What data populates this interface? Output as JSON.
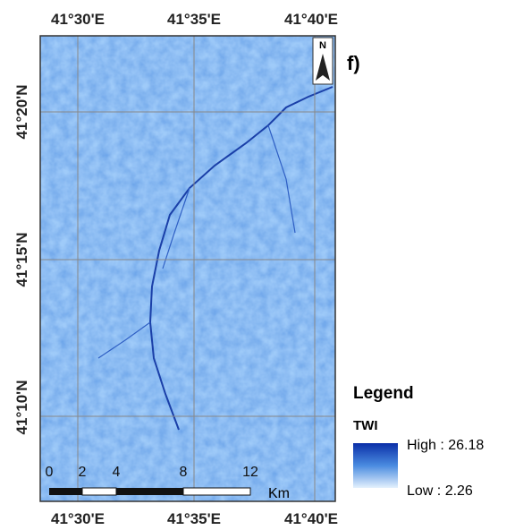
{
  "panel_label": "f)",
  "north": "N",
  "top_labels": [
    "41°30'E",
    "41°35'E",
    "41°40'E"
  ],
  "bottom_labels": [
    "41°30'E",
    "41°35'E",
    "41°40'E"
  ],
  "left_labels": [
    "41°20'N",
    "41°15'N",
    "41°10'N"
  ],
  "scale_bar": {
    "labels": [
      "0",
      "2",
      "4",
      "8",
      "12"
    ],
    "unit": "Km"
  },
  "legend": {
    "title": "Legend",
    "layer": "TWI",
    "high": "High : 26.18",
    "low": "Low : 2.26"
  }
}
